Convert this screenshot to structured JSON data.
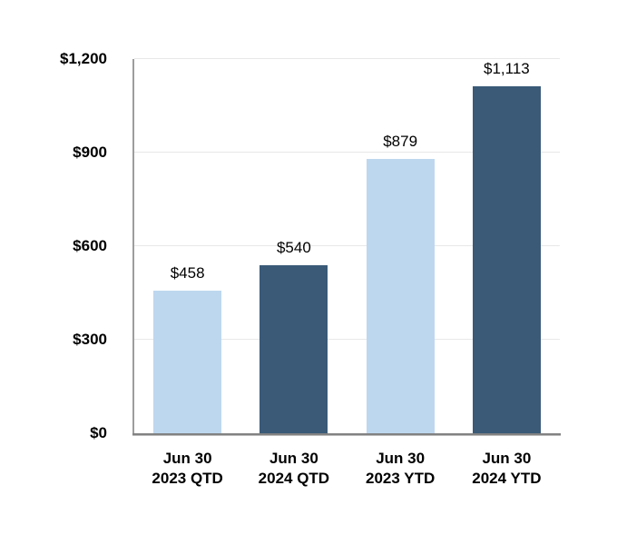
{
  "chart_data": {
    "type": "bar",
    "title": "",
    "xlabel": "",
    "ylabel": "",
    "categories": [
      "Jun 30 2023 QTD",
      "Jun 30 2024 QTD",
      "Jun 30 2023 YTD",
      "Jun 30 2024 YTD"
    ],
    "category_lines": [
      [
        "Jun 30",
        "2023 QTD"
      ],
      [
        "Jun 30",
        "2024 QTD"
      ],
      [
        "Jun 30",
        "2023 YTD"
      ],
      [
        "Jun 30",
        "2024 YTD"
      ]
    ],
    "values": [
      458,
      540,
      879,
      1113
    ],
    "data_labels": [
      "$458",
      "$540",
      "$879",
      "$1,113"
    ],
    "bar_colors": [
      "#bdd7ee",
      "#3a5a78",
      "#bdd7ee",
      "#3a5a78"
    ],
    "ylim": [
      0,
      1200
    ],
    "y_ticks": [
      0,
      300,
      600,
      900,
      1200
    ],
    "y_tick_labels": [
      "$0",
      "$300",
      "$600",
      "$900",
      "$1,200"
    ],
    "grid": true,
    "legend": false
  },
  "colors": {
    "bar_light": "#bdd7ee",
    "bar_dark": "#3a5a78",
    "label_text": "#000000"
  }
}
